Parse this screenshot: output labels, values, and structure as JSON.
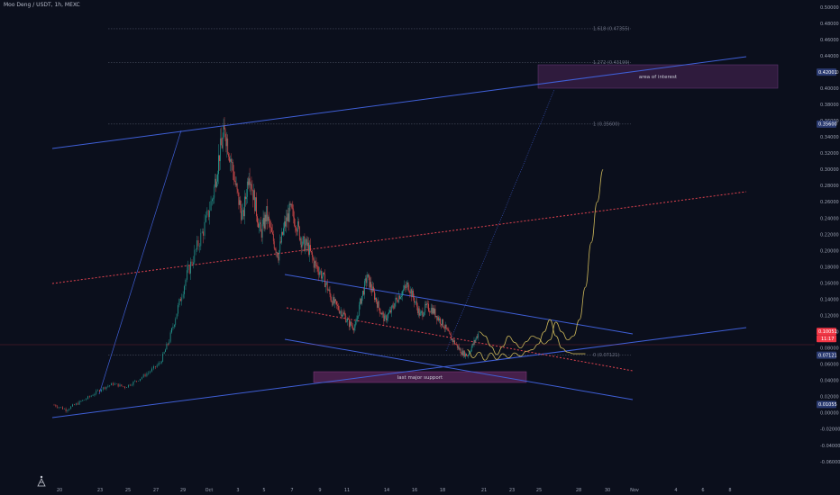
{
  "header": {
    "title": "Moo Deng / USDT, 1h, MEXC"
  },
  "colors": {
    "background": "#0b0f1c",
    "up_candle": "#26a69a",
    "down_candle": "#ef5350",
    "trendline": "#3f5fd6",
    "dotted_line": "#e0424f",
    "projection": "#c9b458",
    "zone_fill": "#5a2a66",
    "price_badge": "#f23645",
    "axis_badge": "#2a3a70"
  },
  "chart_data": {
    "type": "candlestick",
    "y_axis_labels": [
      "0.50000",
      "0.48000",
      "0.46000",
      "0.44000",
      "0.42000",
      "0.40000",
      "0.38000",
      "0.36000",
      "0.34000",
      "0.32000",
      "0.30000",
      "0.28000",
      "0.26000",
      "0.24000",
      "0.22000",
      "0.20000",
      "0.18000",
      "0.16000",
      "0.14000",
      "0.12000",
      "0.10000",
      "0.08000",
      "0.06000",
      "0.04000",
      "0.02000",
      "0.00000",
      "-0.02000",
      "-0.04000",
      "-0.06000"
    ],
    "ylim": [
      -0.06,
      0.5
    ],
    "x_axis_labels": [
      "20",
      "23",
      "25",
      "27",
      "29",
      "Oct",
      "3",
      "5",
      "7",
      "9",
      "11",
      "14",
      "16",
      "18",
      "21",
      "23",
      "25",
      "28",
      "30",
      "Nov",
      "4",
      "6",
      "8"
    ],
    "fib_levels": [
      {
        "label": "1.618 (0.47355)",
        "value": 0.4735
      },
      {
        "label": "1.272 (0.43199)",
        "value": 0.432
      },
      {
        "label": "1 (0.35600)",
        "value": 0.356
      },
      {
        "label": "0 (0.07121)",
        "value": 0.0712
      }
    ],
    "price_badges": {
      "current_price": "0.10051",
      "countdown": "11:17",
      "level_top": "0.42001",
      "level_mid": "0.35600",
      "level_low": "0.07121",
      "level_bottom": "0.01055"
    },
    "annotations": {
      "area_of_interest": "area of interest",
      "last_major_support": "last major support"
    },
    "price_series": [
      {
        "t": 0,
        "v": 0.01
      },
      {
        "t": 2,
        "v": 0.004
      },
      {
        "t": 4,
        "v": 0.012
      },
      {
        "t": 6,
        "v": 0.02
      },
      {
        "t": 8,
        "v": 0.03
      },
      {
        "t": 10,
        "v": 0.036
      },
      {
        "t": 12,
        "v": 0.032
      },
      {
        "t": 14,
        "v": 0.04
      },
      {
        "t": 16,
        "v": 0.05
      },
      {
        "t": 18,
        "v": 0.062
      },
      {
        "t": 19.5,
        "v": 0.09
      },
      {
        "t": 21,
        "v": 0.13
      },
      {
        "t": 22.5,
        "v": 0.17
      },
      {
        "t": 24,
        "v": 0.2
      },
      {
        "t": 25.5,
        "v": 0.23
      },
      {
        "t": 27,
        "v": 0.27
      },
      {
        "t": 28,
        "v": 0.32
      },
      {
        "t": 29,
        "v": 0.348
      },
      {
        "t": 30,
        "v": 0.31
      },
      {
        "t": 31,
        "v": 0.27
      },
      {
        "t": 32,
        "v": 0.24
      },
      {
        "t": 33,
        "v": 0.3
      },
      {
        "t": 34,
        "v": 0.26
      },
      {
        "t": 35,
        "v": 0.22
      },
      {
        "t": 36,
        "v": 0.245
      },
      {
        "t": 37,
        "v": 0.215
      },
      {
        "t": 38,
        "v": 0.195
      },
      {
        "t": 39,
        "v": 0.23
      },
      {
        "t": 40,
        "v": 0.25
      },
      {
        "t": 41,
        "v": 0.235
      },
      {
        "t": 42,
        "v": 0.21
      },
      {
        "t": 43,
        "v": 0.205
      },
      {
        "t": 44,
        "v": 0.185
      },
      {
        "t": 45,
        "v": 0.175
      },
      {
        "t": 46,
        "v": 0.16
      },
      {
        "t": 47,
        "v": 0.14
      },
      {
        "t": 48,
        "v": 0.13
      },
      {
        "t": 49,
        "v": 0.122
      },
      {
        "t": 50,
        "v": 0.11
      },
      {
        "t": 51,
        "v": 0.105
      },
      {
        "t": 52,
        "v": 0.14
      },
      {
        "t": 53,
        "v": 0.168
      },
      {
        "t": 54,
        "v": 0.15
      },
      {
        "t": 55,
        "v": 0.13
      },
      {
        "t": 56,
        "v": 0.115
      },
      {
        "t": 57,
        "v": 0.125
      },
      {
        "t": 58,
        "v": 0.14
      },
      {
        "t": 59,
        "v": 0.15
      },
      {
        "t": 60,
        "v": 0.158
      },
      {
        "t": 61,
        "v": 0.14
      },
      {
        "t": 62,
        "v": 0.12
      },
      {
        "t": 63,
        "v": 0.13
      },
      {
        "t": 64,
        "v": 0.128
      },
      {
        "t": 65,
        "v": 0.118
      },
      {
        "t": 66,
        "v": 0.108
      },
      {
        "t": 67,
        "v": 0.095
      },
      {
        "t": 68,
        "v": 0.085
      },
      {
        "t": 69,
        "v": 0.075
      },
      {
        "t": 70,
        "v": 0.071
      },
      {
        "t": 71,
        "v": 0.085
      },
      {
        "t": 72,
        "v": 0.1
      }
    ],
    "projection_path": [
      {
        "t": 72,
        "v": 0.1
      },
      {
        "t": 73,
        "v": 0.095
      },
      {
        "t": 74,
        "v": 0.082
      },
      {
        "t": 75,
        "v": 0.072
      },
      {
        "t": 76,
        "v": 0.082
      },
      {
        "t": 77,
        "v": 0.095
      },
      {
        "t": 78,
        "v": 0.087
      },
      {
        "t": 79,
        "v": 0.08
      },
      {
        "t": 80,
        "v": 0.088
      },
      {
        "t": 81,
        "v": 0.095
      },
      {
        "t": 82,
        "v": 0.092
      },
      {
        "t": 83,
        "v": 0.085
      },
      {
        "t": 84,
        "v": 0.09
      },
      {
        "t": 85,
        "v": 0.112
      },
      {
        "t": 86,
        "v": 0.1
      },
      {
        "t": 87,
        "v": 0.09
      },
      {
        "t": 88,
        "v": 0.095
      },
      {
        "t": 89,
        "v": 0.115
      },
      {
        "t": 90,
        "v": 0.155
      },
      {
        "t": 91,
        "v": 0.21
      },
      {
        "t": 92,
        "v": 0.26
      },
      {
        "t": 93,
        "v": 0.3
      }
    ],
    "alt_path": [
      {
        "t": 70,
        "v": 0.078
      },
      {
        "t": 71,
        "v": 0.068
      },
      {
        "t": 72,
        "v": 0.075
      },
      {
        "t": 73,
        "v": 0.065
      },
      {
        "t": 74,
        "v": 0.074
      },
      {
        "t": 75,
        "v": 0.066
      },
      {
        "t": 76,
        "v": 0.073
      },
      {
        "t": 77,
        "v": 0.068
      },
      {
        "t": 78,
        "v": 0.074
      },
      {
        "t": 79,
        "v": 0.07
      },
      {
        "t": 80,
        "v": 0.076
      },
      {
        "t": 81,
        "v": 0.078
      },
      {
        "t": 82,
        "v": 0.085
      },
      {
        "t": 83,
        "v": 0.1
      },
      {
        "t": 84,
        "v": 0.115
      },
      {
        "t": 85,
        "v": 0.095
      },
      {
        "t": 86,
        "v": 0.08
      },
      {
        "t": 87,
        "v": 0.075
      },
      {
        "t": 88,
        "v": 0.073
      },
      {
        "t": 89,
        "v": 0.073
      },
      {
        "t": 90,
        "v": 0.073
      }
    ]
  }
}
